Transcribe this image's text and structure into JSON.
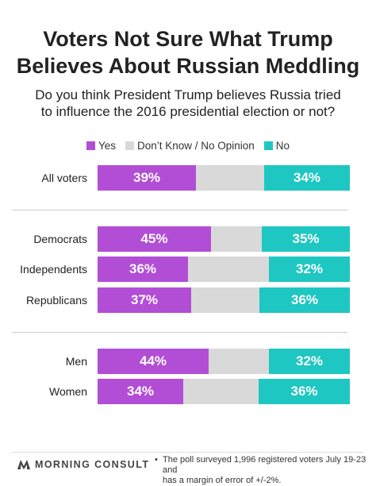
{
  "colors": {
    "yes": "#b24ed6",
    "dont_know": "#d9d9d9",
    "no": "#1ec7c1"
  },
  "chart_data": {
    "type": "bar",
    "orientation": "horizontal",
    "stacked": true,
    "title_lines": [
      "Voters Not Sure What Trump",
      "Believes About Russian Meddling"
    ],
    "subtitle_lines": [
      "Do you think President Trump believes Russia tried",
      "to influence the 2016 presidential election or not?"
    ],
    "legend": [
      {
        "key": "yes",
        "label": "Yes"
      },
      {
        "key": "dont_know",
        "label": "Don’t Know / No Opinion"
      },
      {
        "key": "no",
        "label": "No"
      }
    ],
    "legend_position": "top-center",
    "categories": [
      "All voters",
      "Democrats",
      "Independents",
      "Republicans",
      "Men",
      "Women"
    ],
    "groups": [
      [
        "All voters"
      ],
      [
        "Democrats",
        "Independents",
        "Republicans"
      ],
      [
        "Men",
        "Women"
      ]
    ],
    "series": [
      {
        "key": "yes",
        "values": [
          39,
          45,
          36,
          37,
          44,
          34
        ],
        "labels": [
          "39%",
          "45%",
          "36%",
          "37%",
          "44%",
          "34%"
        ]
      },
      {
        "key": "dont_know",
        "values": [
          27,
          20,
          32,
          27,
          24,
          30
        ]
      },
      {
        "key": "no",
        "values": [
          34,
          35,
          32,
          36,
          32,
          36
        ],
        "labels": [
          "34%",
          "35%",
          "32%",
          "36%",
          "32%",
          "36%"
        ]
      }
    ],
    "xlim": [
      0,
      100
    ],
    "grid": false
  },
  "footer": {
    "brand": "MORNING CONSULT",
    "note_lines": [
      "The poll surveyed 1,996 registered voters July 19-23 and",
      "has a margin of error of +/-2%."
    ],
    "bullet": "•"
  }
}
